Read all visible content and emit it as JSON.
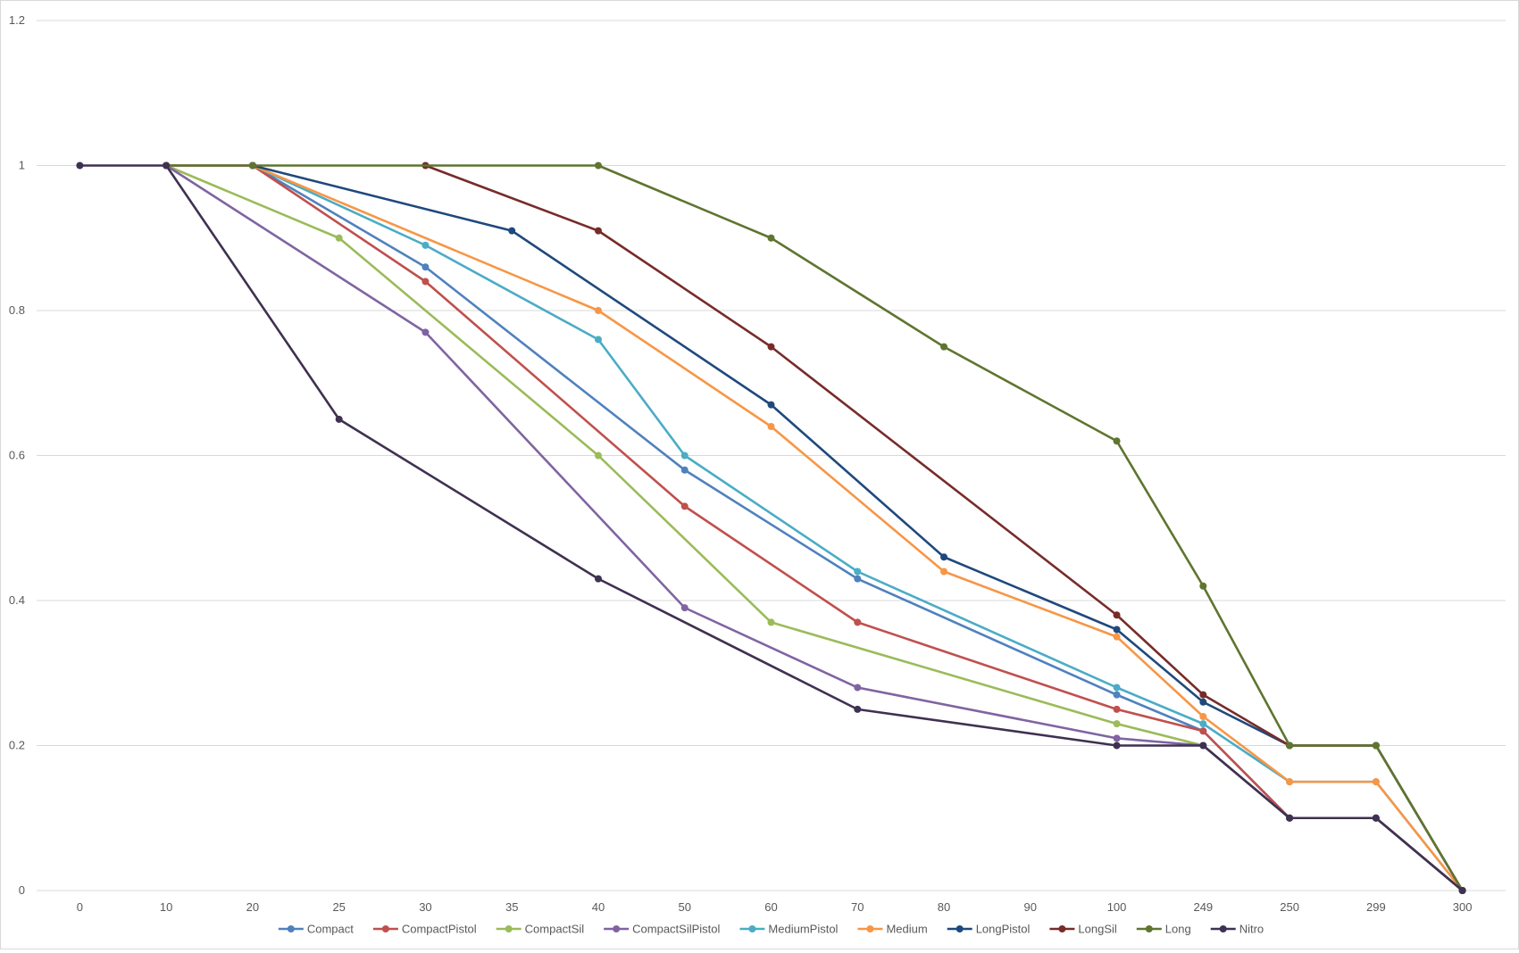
{
  "chart_data": {
    "type": "line",
    "title": "",
    "xlabel": "",
    "ylabel": "",
    "categories": [
      "0",
      "10",
      "20",
      "25",
      "30",
      "35",
      "40",
      "50",
      "60",
      "70",
      "80",
      "90",
      "100",
      "249",
      "250",
      "299",
      "300"
    ],
    "y_ticks": [
      "0",
      "0.2",
      "0.4",
      "0.6",
      "0.8",
      "1",
      "1.2"
    ],
    "ylim": [
      0,
      1.2
    ],
    "grid": "horizontal",
    "legend_position": "bottom",
    "series": [
      {
        "name": "Compact",
        "color": "#4F81BD",
        "points": [
          [
            "10",
            1
          ],
          [
            "20",
            1
          ],
          [
            "30",
            0.86
          ],
          [
            "50",
            0.58
          ],
          [
            "70",
            0.43
          ],
          [
            "100",
            0.27
          ],
          [
            "249",
            0.22
          ],
          [
            "250",
            0.1
          ],
          [
            "299",
            0.1
          ],
          [
            "300",
            0
          ]
        ]
      },
      {
        "name": "CompactPistol",
        "color": "#C0504D",
        "points": [
          [
            "10",
            1
          ],
          [
            "20",
            1
          ],
          [
            "30",
            0.84
          ],
          [
            "50",
            0.53
          ],
          [
            "70",
            0.37
          ],
          [
            "100",
            0.25
          ],
          [
            "249",
            0.22
          ],
          [
            "250",
            0.1
          ],
          [
            "299",
            0.1
          ],
          [
            "300",
            0
          ]
        ]
      },
      {
        "name": "CompactSil",
        "color": "#9BBB59",
        "points": [
          [
            "10",
            1
          ],
          [
            "25",
            0.9
          ],
          [
            "40",
            0.6
          ],
          [
            "60",
            0.37
          ],
          [
            "100",
            0.23
          ],
          [
            "249",
            0.2
          ],
          [
            "250",
            0.1
          ],
          [
            "299",
            0.1
          ],
          [
            "300",
            0
          ]
        ]
      },
      {
        "name": "CompactSilPistol",
        "color": "#8064A2",
        "points": [
          [
            "10",
            1
          ],
          [
            "30",
            0.77
          ],
          [
            "50",
            0.39
          ],
          [
            "70",
            0.28
          ],
          [
            "100",
            0.21
          ],
          [
            "249",
            0.2
          ],
          [
            "250",
            0.1
          ],
          [
            "299",
            0.1
          ],
          [
            "300",
            0
          ]
        ]
      },
      {
        "name": "MediumPistol",
        "color": "#4BACC6",
        "points": [
          [
            "20",
            1
          ],
          [
            "30",
            0.89
          ],
          [
            "40",
            0.76
          ],
          [
            "50",
            0.6
          ],
          [
            "70",
            0.44
          ],
          [
            "100",
            0.28
          ],
          [
            "249",
            0.23
          ],
          [
            "250",
            0.15
          ],
          [
            "299",
            0.15
          ],
          [
            "300",
            0
          ]
        ]
      },
      {
        "name": "Medium",
        "color": "#F79646",
        "points": [
          [
            "20",
            1
          ],
          [
            "40",
            0.8
          ],
          [
            "60",
            0.64
          ],
          [
            "80",
            0.44
          ],
          [
            "100",
            0.35
          ],
          [
            "249",
            0.24
          ],
          [
            "250",
            0.15
          ],
          [
            "299",
            0.15
          ],
          [
            "300",
            0
          ]
        ]
      },
      {
        "name": "LongPistol",
        "color": "#1F497D",
        "points": [
          [
            "20",
            1
          ],
          [
            "35",
            0.91
          ],
          [
            "60",
            0.67
          ],
          [
            "80",
            0.46
          ],
          [
            "100",
            0.36
          ],
          [
            "249",
            0.26
          ],
          [
            "250",
            0.2
          ],
          [
            "299",
            0.2
          ],
          [
            "300",
            0
          ]
        ]
      },
      {
        "name": "LongSil",
        "color": "#772C2A",
        "points": [
          [
            "30",
            1
          ],
          [
            "40",
            0.91
          ],
          [
            "60",
            0.75
          ],
          [
            "100",
            0.38
          ],
          [
            "249",
            0.27
          ],
          [
            "250",
            0.2
          ],
          [
            "299",
            0.2
          ],
          [
            "300",
            0
          ]
        ]
      },
      {
        "name": "Long",
        "color": "#5F7530",
        "points": [
          [
            "10",
            1
          ],
          [
            "20",
            1
          ],
          [
            "40",
            1
          ],
          [
            "60",
            0.9
          ],
          [
            "80",
            0.75
          ],
          [
            "100",
            0.62
          ],
          [
            "249",
            0.42
          ],
          [
            "250",
            0.2
          ],
          [
            "299",
            0.2
          ],
          [
            "300",
            0
          ]
        ]
      },
      {
        "name": "Nitro",
        "color": "#3F3151",
        "points": [
          [
            "0",
            1
          ],
          [
            "10",
            1
          ],
          [
            "25",
            0.65
          ],
          [
            "40",
            0.43
          ],
          [
            "70",
            0.25
          ],
          [
            "100",
            0.2
          ],
          [
            "249",
            0.2
          ],
          [
            "250",
            0.1
          ],
          [
            "299",
            0.1
          ],
          [
            "300",
            0
          ]
        ]
      }
    ]
  }
}
